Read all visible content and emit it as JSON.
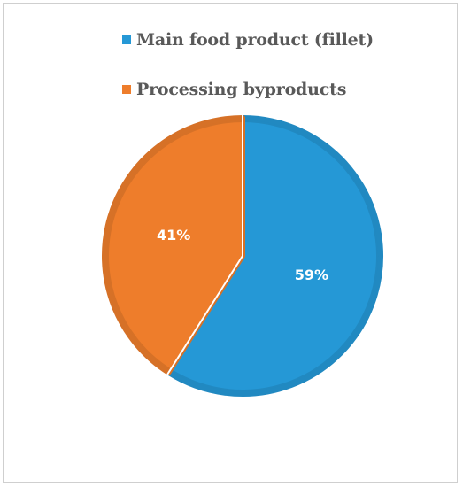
{
  "chart_data": {
    "type": "pie",
    "title": "",
    "legend_position": "top",
    "slices": [
      {
        "label": "Main food product (fillet)",
        "value": 59,
        "display": "59%",
        "color": "#2598d6"
      },
      {
        "label": "Processing byproducts",
        "value": 41,
        "display": "41%",
        "color": "#ee7d2b"
      }
    ]
  },
  "legend": {
    "items": [
      {
        "label": "Main food product (fillet)",
        "color": "#2598d6"
      },
      {
        "label": "Processing byproducts",
        "color": "#ee7d2b"
      }
    ]
  }
}
